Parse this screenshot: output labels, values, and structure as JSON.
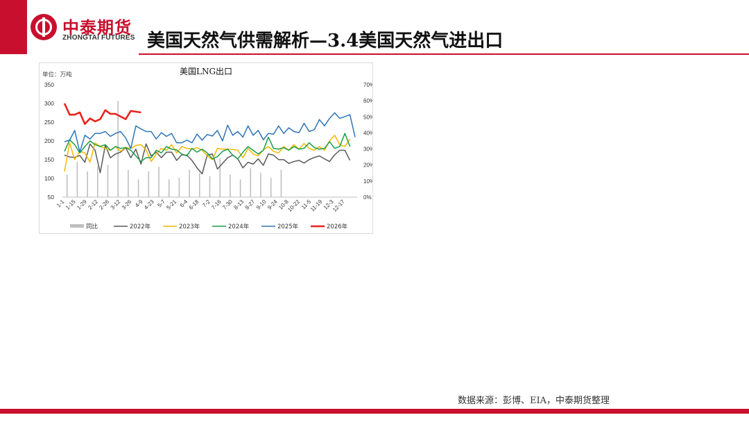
{
  "header": {
    "logo_cn": "中泰期货",
    "logo_en": "ZHONGTAI FUTURES",
    "title": "美国天然气供需解析—3.4美国天然气进出口"
  },
  "footer": {
    "source": "数据来源：彭博、EIA，中泰期货整理"
  },
  "colors": {
    "brand": "#c8102e"
  },
  "chart_data": {
    "type": "line",
    "title": "美国LNG出口",
    "unit_label": "单位：万吨",
    "ylim": [
      50,
      350
    ],
    "yticks": [
      "350",
      "300",
      "250",
      "200",
      "150",
      "100",
      "50"
    ],
    "y2lim": [
      0,
      70
    ],
    "y2ticks": [
      "70%",
      "60%",
      "50%",
      "40%",
      "30%",
      "20%",
      "10%",
      "0%"
    ],
    "x_labels": [
      "1-1",
      "1-15",
      "1-29",
      "2-12",
      "2-26",
      "3-12",
      "3-26",
      "4-9",
      "4-23",
      "5-7",
      "5-21",
      "6-4",
      "6-18",
      "7-2",
      "7-16",
      "7-30",
      "8-13",
      "8-27",
      "9-10",
      "9-24",
      "10-8",
      "10-22",
      "11-5",
      "11-19",
      "12-3",
      "12-17"
    ],
    "grid": false,
    "legend_position": "bottom",
    "bar_series": {
      "name": "同比",
      "color": "#bfbfbf",
      "axis": "right",
      "values": [
        14,
        22,
        16,
        19,
        20,
        60,
        17,
        11,
        16,
        19,
        11,
        12,
        17,
        15,
        13,
        24,
        14,
        11,
        18,
        15,
        12,
        17
      ]
    },
    "series": [
      {
        "name": "2022年",
        "color": "#595959",
        "values": [
          162,
          157,
          156,
          161,
          143,
          192,
          175,
          115,
          188,
          155,
          165,
          170,
          182,
          155,
          178,
          138,
          192,
          160,
          170,
          155,
          170,
          170,
          148,
          163,
          162,
          148,
          128,
          112,
          162,
          165,
          125,
          140,
          155,
          162,
          152,
          128,
          143,
          138,
          152,
          135,
          165,
          162,
          150,
          150,
          140,
          145,
          148,
          141,
          150,
          156,
          160,
          152,
          145,
          163,
          175,
          175,
          148
        ]
      },
      {
        "name": "2023年",
        "color": "#f5b800",
        "values": [
          118,
          195,
          150,
          172,
          168,
          143,
          195,
          185,
          180,
          175,
          185,
          172,
          183,
          180,
          188,
          190,
          176,
          145,
          165,
          180,
          175,
          190,
          168,
          185,
          180,
          178,
          182,
          175,
          160,
          150,
          180,
          178,
          178,
          177,
          175,
          155,
          180,
          165,
          160,
          176,
          185,
          172,
          168,
          185,
          175,
          190,
          178,
          193,
          180,
          175,
          185,
          175,
          200,
          215,
          190,
          185,
          205
        ]
      },
      {
        "name": "2024年",
        "color": "#1a9e4a",
        "values": [
          172,
          203,
          190,
          168,
          185,
          200,
          190,
          185,
          190,
          175,
          185,
          180,
          182,
          175,
          160,
          145,
          155,
          155,
          175,
          168,
          185,
          178,
          176,
          165,
          160,
          180,
          170,
          178,
          168,
          152,
          158,
          172,
          178,
          162,
          152,
          170,
          185,
          175,
          165,
          175,
          210,
          180,
          178,
          182,
          175,
          185,
          178,
          180,
          195,
          182,
          178,
          180,
          198,
          180,
          185,
          220,
          185
        ]
      },
      {
        "name": "2025年",
        "color": "#2e75b6",
        "values": [
          198,
          202,
          228,
          170,
          215,
          205,
          220,
          220,
          225,
          212,
          220,
          225,
          208,
          180,
          240,
          232,
          225,
          225,
          205,
          222,
          212,
          220,
          195,
          195,
          202,
          195,
          218,
          202,
          217,
          213,
          228,
          200,
          242,
          215,
          225,
          210,
          240,
          215,
          228,
          203,
          220,
          218,
          240,
          220,
          235,
          225,
          222,
          247,
          225,
          230,
          257,
          240,
          260,
          275,
          260,
          265,
          270,
          210
        ]
      },
      {
        "name": "2026年",
        "color": "#e8231c",
        "values": [
          300,
          270,
          270,
          276,
          245,
          260,
          252,
          258,
          282,
          272,
          272,
          265,
          258,
          280,
          278,
          276
        ]
      }
    ]
  }
}
